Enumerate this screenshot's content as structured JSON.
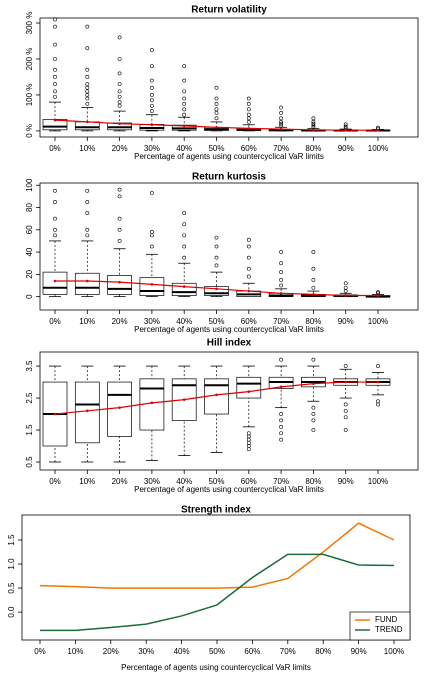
{
  "chart_data": [
    {
      "type": "box",
      "title": "Return volatility",
      "xlabel": "Percentage of agents using countercyclical VaR limits",
      "categories": [
        "0%",
        "10%",
        "20%",
        "30%",
        "40%",
        "50%",
        "60%",
        "70%",
        "80%",
        "90%",
        "100%"
      ],
      "ylim": [
        -17,
        314
      ],
      "yticks": [
        {
          "value": 0,
          "label": "0 %"
        },
        {
          "value": 100,
          "label": "100 %"
        },
        {
          "value": 200,
          "label": "200 %"
        },
        {
          "value": 300,
          "label": "300 %"
        }
      ],
      "mean_color": "#e00000",
      "boxes": [
        {
          "low": 0,
          "q1": 3,
          "median": 12,
          "q3": 32,
          "high": 80,
          "outliers": [
            95,
            110,
            130,
            150,
            170,
            200,
            240,
            290,
            310
          ]
        },
        {
          "low": 0,
          "q1": 3,
          "median": 10,
          "q3": 25,
          "high": 65,
          "outliers": [
            75,
            90,
            100,
            110,
            120,
            130,
            150,
            170,
            230,
            290
          ]
        },
        {
          "low": 0,
          "q1": 3,
          "median": 10,
          "q3": 22,
          "high": 55,
          "outliers": [
            70,
            80,
            95,
            110,
            130,
            160,
            200,
            260
          ]
        },
        {
          "low": 0,
          "q1": 2,
          "median": 8,
          "q3": 18,
          "high": 45,
          "outliers": [
            55,
            70,
            85,
            100,
            120,
            140,
            180,
            225
          ]
        },
        {
          "low": 0,
          "q1": 2,
          "median": 7,
          "q3": 16,
          "high": 38,
          "outliers": [
            45,
            60,
            75,
            90,
            110,
            140,
            180
          ]
        },
        {
          "low": 0,
          "q1": 1,
          "median": 5,
          "q3": 10,
          "high": 25,
          "outliers": [
            35,
            50,
            60,
            75,
            90,
            120
          ]
        },
        {
          "low": 0,
          "q1": 1,
          "median": 3,
          "q3": 7,
          "high": 17,
          "outliers": [
            25,
            35,
            45,
            60,
            75,
            90
          ]
        },
        {
          "low": 0,
          "q1": 0,
          "median": 2,
          "q3": 4,
          "high": 10,
          "outliers": [
            15,
            20,
            25,
            35,
            50,
            65
          ]
        },
        {
          "low": 0,
          "q1": 0,
          "median": 1,
          "q3": 3,
          "high": 7,
          "outliers": [
            10,
            15,
            20,
            25,
            35
          ]
        },
        {
          "low": 0,
          "q1": 0,
          "median": 1,
          "q3": 2,
          "high": 5,
          "outliers": [
            8,
            12,
            18
          ]
        },
        {
          "low": 0,
          "q1": 0,
          "median": 1,
          "q3": 2,
          "high": 4,
          "outliers": [
            6,
            9
          ]
        }
      ],
      "means": [
        30,
        25,
        20,
        17,
        14,
        10,
        7,
        5,
        3,
        2,
        2
      ]
    },
    {
      "type": "box",
      "title": "Return kurtosis",
      "xlabel": "Percentage of agents using countercyclical VaR limits",
      "categories": [
        "0%",
        "10%",
        "20%",
        "30%",
        "40%",
        "50%",
        "60%",
        "70%",
        "80%",
        "90%",
        "100%"
      ],
      "ylim": [
        -12,
        102
      ],
      "yticks": [
        0,
        20,
        40,
        60,
        80,
        100
      ],
      "mean_color": "#e00000",
      "boxes": [
        {
          "low": 0,
          "q1": 2,
          "median": 8,
          "q3": 22,
          "high": 50,
          "outliers": [
            55,
            60,
            70,
            85,
            95
          ]
        },
        {
          "low": 0,
          "q1": 2,
          "median": 8,
          "q3": 21,
          "high": 50,
          "outliers": [
            55,
            60,
            75,
            85,
            95
          ]
        },
        {
          "low": 0,
          "q1": 2,
          "median": 7,
          "q3": 19,
          "high": 43,
          "outliers": [
            50,
            60,
            70,
            90,
            96
          ]
        },
        {
          "low": 0,
          "q1": 1,
          "median": 5,
          "q3": 17,
          "high": 38,
          "outliers": [
            45,
            55,
            58,
            93
          ]
        },
        {
          "low": 0,
          "q1": 1,
          "median": 4,
          "q3": 12,
          "high": 30,
          "outliers": [
            35,
            45,
            55,
            65,
            75
          ]
        },
        {
          "low": 0,
          "q1": 1,
          "median": 3,
          "q3": 9,
          "high": 22,
          "outliers": [
            28,
            35,
            45,
            53
          ]
        },
        {
          "low": 0,
          "q1": 0,
          "median": 2,
          "q3": 5,
          "high": 12,
          "outliers": [
            18,
            25,
            35,
            45,
            51
          ]
        },
        {
          "low": 0,
          "q1": 0,
          "median": 1,
          "q3": 3,
          "high": 7,
          "outliers": [
            10,
            15,
            22,
            30,
            40
          ]
        },
        {
          "low": 0,
          "q1": 0,
          "median": 1,
          "q3": 2,
          "high": 5,
          "outliers": [
            8,
            15,
            25,
            40
          ]
        },
        {
          "low": 0,
          "q1": 0,
          "median": 1,
          "q3": 1,
          "high": 3,
          "outliers": [
            5,
            8,
            12
          ]
        },
        {
          "low": 0,
          "q1": 0,
          "median": 0,
          "q3": 1,
          "high": 2,
          "outliers": [
            3,
            4
          ]
        }
      ],
      "means": [
        14,
        14,
        13,
        11,
        9,
        7,
        5,
        3,
        2,
        1,
        1
      ]
    },
    {
      "type": "box",
      "title": "Hill index",
      "xlabel": "Percentage of agents using countercyclical VaR limits",
      "categories": [
        "0%",
        "10%",
        "20%",
        "30%",
        "40%",
        "50%",
        "60%",
        "70%",
        "80%",
        "90%",
        "100%"
      ],
      "ylim": [
        0.25,
        3.94
      ],
      "yticks": [
        0.5,
        1.5,
        2.5,
        3.5
      ],
      "mean_color": "#e00000",
      "boxes": [
        {
          "low": 0.5,
          "q1": 1.0,
          "median": 2.0,
          "q3": 3.0,
          "high": 3.5,
          "outliers": []
        },
        {
          "low": 0.5,
          "q1": 1.1,
          "median": 2.3,
          "q3": 3.0,
          "high": 3.5,
          "outliers": []
        },
        {
          "low": 0.5,
          "q1": 1.3,
          "median": 2.6,
          "q3": 3.0,
          "high": 3.5,
          "outliers": []
        },
        {
          "low": 0.55,
          "q1": 1.5,
          "median": 2.8,
          "q3": 3.1,
          "high": 3.5,
          "outliers": []
        },
        {
          "low": 0.7,
          "q1": 1.8,
          "median": 2.9,
          "q3": 3.1,
          "high": 3.5,
          "outliers": []
        },
        {
          "low": 0.8,
          "q1": 2.0,
          "median": 2.9,
          "q3": 3.1,
          "high": 3.5,
          "outliers": []
        },
        {
          "low": 1.6,
          "q1": 2.5,
          "median": 2.95,
          "q3": 3.15,
          "high": 3.5,
          "outliers": [
            0.9,
            1.0,
            1.1,
            1.2,
            1.3,
            1.4
          ]
        },
        {
          "low": 2.2,
          "q1": 2.8,
          "median": 3.0,
          "q3": 3.15,
          "high": 3.5,
          "outliers": [
            1.2,
            1.4,
            1.6,
            1.8,
            2.0,
            3.7
          ]
        },
        {
          "low": 2.4,
          "q1": 2.85,
          "median": 3.0,
          "q3": 3.15,
          "high": 3.5,
          "outliers": [
            1.5,
            1.8,
            2.0,
            2.2,
            3.7
          ]
        },
        {
          "low": 2.5,
          "q1": 2.9,
          "median": 3.0,
          "q3": 3.1,
          "high": 3.4,
          "outliers": [
            1.5,
            1.9,
            2.1,
            2.3,
            3.5
          ]
        },
        {
          "low": 2.6,
          "q1": 2.9,
          "median": 3.0,
          "q3": 3.1,
          "high": 3.3,
          "outliers": [
            2.3,
            2.4,
            3.5
          ]
        }
      ],
      "means": [
        2.0,
        2.1,
        2.2,
        2.35,
        2.45,
        2.6,
        2.7,
        2.85,
        2.95,
        3.0,
        3.0
      ]
    },
    {
      "type": "line",
      "title": "Strength index",
      "xlabel": "Percentage of agents using countercyclical VaR limits",
      "categories": [
        "0%",
        "10%",
        "20%",
        "30%",
        "40%",
        "50%",
        "60%",
        "70%",
        "80%",
        "90%",
        "100%"
      ],
      "ylim": [
        -0.58,
        2.02
      ],
      "yticks": [
        {
          "value": 0,
          "label": "0.0"
        },
        0.5,
        {
          "value": 1,
          "label": "1.0"
        },
        1.5
      ],
      "legend": "bottom-right",
      "series": [
        {
          "name": "FUND",
          "color": "#f07800",
          "values": [
            0.55,
            0.53,
            0.5,
            0.5,
            0.5,
            0.5,
            0.52,
            0.7,
            1.25,
            1.85,
            1.5
          ]
        },
        {
          "name": "TREND",
          "color": "#1e6b3c",
          "values": [
            -0.38,
            -0.38,
            -0.32,
            -0.25,
            -0.08,
            0.15,
            0.72,
            1.2,
            1.2,
            0.98,
            0.97
          ]
        }
      ]
    }
  ]
}
